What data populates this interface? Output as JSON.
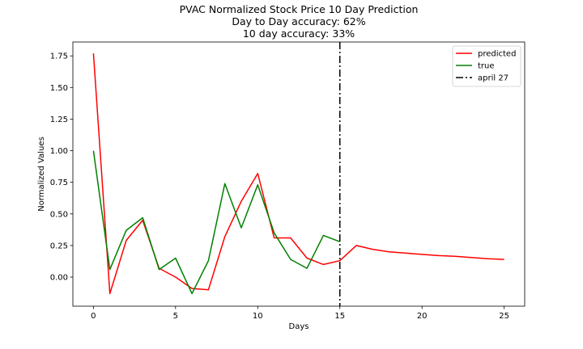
{
  "chart_data": {
    "type": "line",
    "title": [
      "PVAC Normalized Stock Price 10 Day Prediction",
      "Day to Day accuracy: 62%",
      "10 day accuracy: 33%"
    ],
    "xlabel": "Days",
    "ylabel": "Normalized Values",
    "xlim": [
      -1.25,
      26.25
    ],
    "ylim": [
      -0.23,
      1.86
    ],
    "xticks": [
      0,
      5,
      10,
      15,
      20,
      25
    ],
    "yticks": [
      0.0,
      0.25,
      0.5,
      0.75,
      1.0,
      1.25,
      1.5,
      1.75
    ],
    "ytick_labels": [
      "0.00",
      "0.25",
      "0.50",
      "0.75",
      "1.00",
      "1.25",
      "1.50",
      "1.75"
    ],
    "series": [
      {
        "name": "predicted",
        "color": "#ff0000",
        "x": [
          0,
          1,
          2,
          3,
          4,
          5,
          6,
          7,
          8,
          9,
          10,
          11,
          12,
          13,
          14,
          15,
          16,
          17,
          18,
          19,
          20,
          21,
          22,
          23,
          24,
          25
        ],
        "values": [
          1.77,
          -0.13,
          0.29,
          0.45,
          0.07,
          0.0,
          -0.09,
          -0.1,
          0.32,
          0.6,
          0.82,
          0.31,
          0.31,
          0.15,
          0.1,
          0.13,
          0.25,
          0.22,
          0.2,
          0.19,
          0.18,
          0.17,
          0.165,
          0.155,
          0.145,
          0.14
        ]
      },
      {
        "name": "true",
        "color": "#008000",
        "x": [
          0,
          1,
          2,
          3,
          4,
          5,
          6,
          7,
          8,
          9,
          10,
          11,
          12,
          13,
          14,
          15
        ],
        "values": [
          1.0,
          0.06,
          0.37,
          0.47,
          0.06,
          0.15,
          -0.13,
          0.13,
          0.74,
          0.39,
          0.73,
          0.35,
          0.14,
          0.07,
          0.33,
          0.28
        ]
      }
    ],
    "vline": {
      "x": 15,
      "name": "april 27",
      "color": "#000000",
      "style": "dashdot"
    },
    "legend": {
      "placement": "top-right",
      "entries": [
        "predicted",
        "true",
        "april 27"
      ]
    },
    "grid": false
  }
}
